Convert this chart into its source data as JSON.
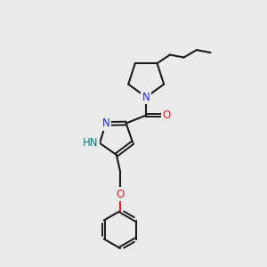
{
  "background_color": "#ebebeb",
  "bond_color": "#1a1a1a",
  "N_color": "#2222ee",
  "O_color": "#ee2222",
  "NH_color": "#008080",
  "figsize": [
    3.0,
    3.0
  ],
  "dpi": 100,
  "lw": 1.5,
  "lw_d": 1.4,
  "fs": 7.5,
  "doff": 0.055,
  "scale": 1.0,
  "xlim": [
    0,
    10
  ],
  "ylim": [
    0,
    10
  ]
}
